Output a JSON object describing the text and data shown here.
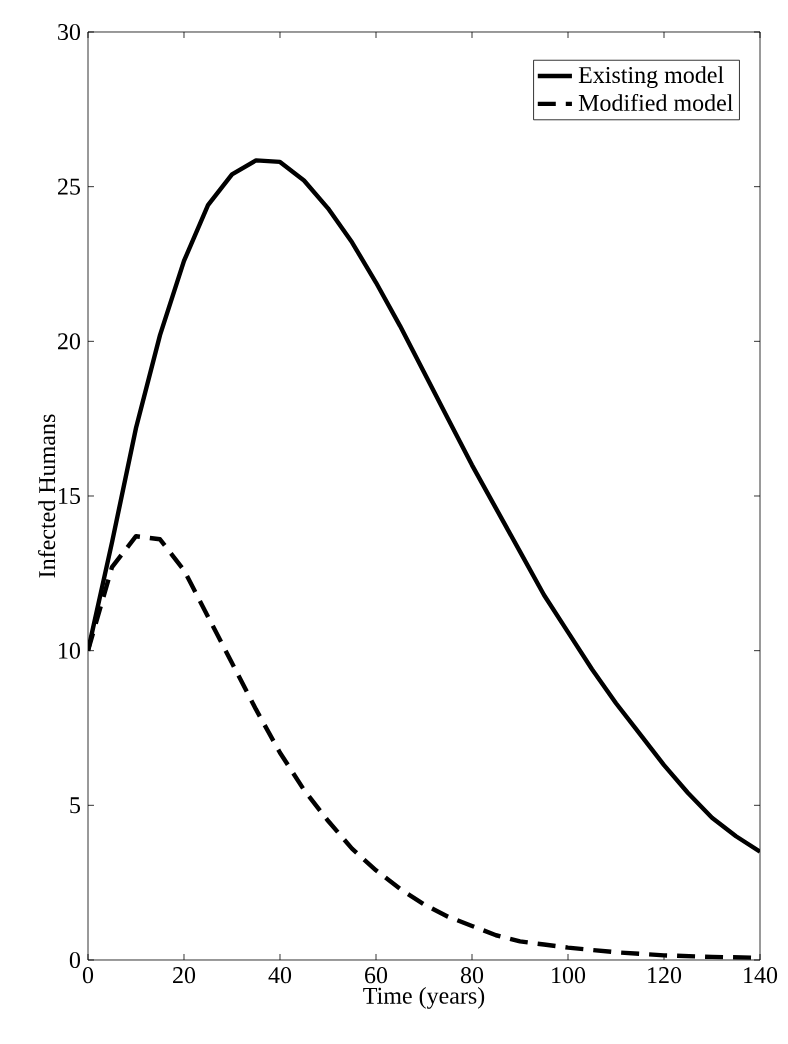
{
  "chart_data": {
    "type": "line",
    "xlabel": "Time (years)",
    "ylabel": "Infected Humans",
    "xlim": [
      0,
      140
    ],
    "ylim": [
      0,
      30
    ],
    "xticks": [
      0,
      20,
      40,
      60,
      80,
      100,
      120,
      140
    ],
    "yticks": [
      0,
      5,
      10,
      15,
      20,
      25,
      30
    ],
    "grid": false,
    "legend": "top right",
    "series": [
      {
        "name": "Existing model",
        "color": "#000000",
        "line_style": "solid",
        "x": [
          0,
          5,
          10,
          15,
          20,
          25,
          30,
          35,
          40,
          45,
          50,
          55,
          60,
          65,
          70,
          75,
          80,
          85,
          90,
          95,
          100,
          105,
          110,
          115,
          120,
          125,
          130,
          135,
          140
        ],
        "values": [
          10,
          13.5,
          17.2,
          20.2,
          22.6,
          24.4,
          25.4,
          25.85,
          25.8,
          25.2,
          24.3,
          23.2,
          21.9,
          20.5,
          19.0,
          17.5,
          16.0,
          14.6,
          13.2,
          11.8,
          10.6,
          9.4,
          8.3,
          7.3,
          6.3,
          5.4,
          4.6,
          4.0,
          3.5
        ]
      },
      {
        "name": "Modified model",
        "color": "#000000",
        "line_style": "dashed",
        "x": [
          0,
          5,
          10,
          15,
          20,
          25,
          30,
          35,
          40,
          45,
          50,
          55,
          60,
          65,
          70,
          75,
          80,
          85,
          90,
          95,
          100,
          110,
          120,
          130,
          140
        ],
        "values": [
          10,
          12.7,
          13.7,
          13.6,
          12.6,
          11.1,
          9.6,
          8.1,
          6.7,
          5.5,
          4.5,
          3.6,
          2.9,
          2.3,
          1.8,
          1.4,
          1.1,
          0.8,
          0.6,
          0.5,
          0.4,
          0.25,
          0.15,
          0.1,
          0.07
        ]
      }
    ]
  }
}
